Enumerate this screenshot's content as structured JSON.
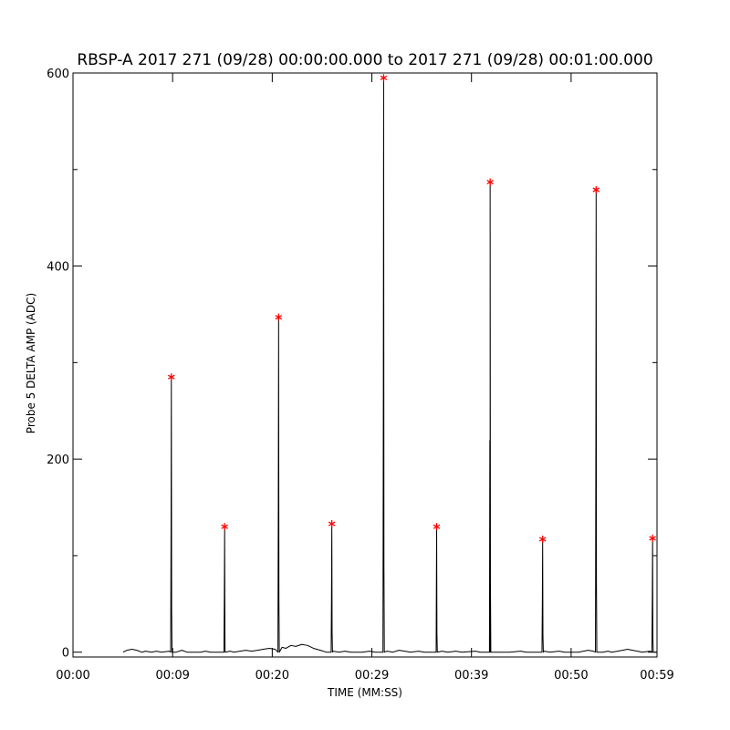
{
  "chart_data": {
    "type": "line",
    "title": "RBSP-A 2017 271 (09/28) 00:00:00.000 to 2017 271 (09/28) 00:01:00.000",
    "xlabel": "TIME (MM:SS)",
    "ylabel": "Probe 5 DELTA AMP (ADC)",
    "xlim": [
      0,
      59.5
    ],
    "ylim": [
      -5,
      600
    ],
    "x_ticks": [
      {
        "value": 0,
        "label": "00:00"
      },
      {
        "value": 10.15,
        "label": "00:09"
      },
      {
        "value": 20.3,
        "label": "00:20"
      },
      {
        "value": 30.45,
        "label": "00:29"
      },
      {
        "value": 40.6,
        "label": "00:39"
      },
      {
        "value": 50.75,
        "label": "00:50"
      },
      {
        "value": 59.5,
        "label": "00:59"
      }
    ],
    "y_ticks": [
      {
        "value": 0,
        "label": "0"
      },
      {
        "value": 200,
        "label": "200"
      },
      {
        "value": 400,
        "label": "400"
      },
      {
        "value": 600,
        "label": "600"
      }
    ],
    "y_minor_step": 100,
    "baseline": [
      [
        5.1,
        0
      ],
      [
        5.5,
        2
      ],
      [
        6.0,
        3
      ],
      [
        6.5,
        2
      ],
      [
        7.0,
        0
      ],
      [
        7.4,
        1
      ],
      [
        8.0,
        0
      ],
      [
        8.5,
        1
      ],
      [
        9.0,
        0
      ],
      [
        9.8,
        1
      ],
      [
        10.5,
        0
      ],
      [
        11.1,
        2
      ],
      [
        11.6,
        0
      ],
      [
        13.0,
        0
      ],
      [
        13.5,
        1
      ],
      [
        14.0,
        0
      ],
      [
        15.5,
        0
      ],
      [
        16.0,
        1
      ],
      [
        16.4,
        0
      ],
      [
        17.0,
        1
      ],
      [
        17.6,
        2
      ],
      [
        18.2,
        1
      ],
      [
        18.8,
        2
      ],
      [
        19.4,
        3
      ],
      [
        20.0,
        4
      ],
      [
        20.6,
        3
      ],
      [
        21.3,
        5
      ],
      [
        21.7,
        4
      ],
      [
        22.2,
        7
      ],
      [
        22.7,
        6
      ],
      [
        23.3,
        8
      ],
      [
        23.9,
        7
      ],
      [
        24.5,
        4
      ],
      [
        25.2,
        2
      ],
      [
        25.8,
        0
      ],
      [
        26.5,
        1
      ],
      [
        27.1,
        0
      ],
      [
        27.7,
        1
      ],
      [
        28.3,
        0
      ],
      [
        29.5,
        0
      ],
      [
        30.2,
        1
      ],
      [
        30.8,
        0
      ],
      [
        32.0,
        1
      ],
      [
        32.6,
        0
      ],
      [
        33.2,
        2
      ],
      [
        33.8,
        1
      ],
      [
        34.4,
        0
      ],
      [
        35.2,
        1
      ],
      [
        35.8,
        0
      ],
      [
        37.0,
        0
      ],
      [
        37.6,
        1
      ],
      [
        38.2,
        0
      ],
      [
        39.0,
        1
      ],
      [
        39.6,
        0
      ],
      [
        41.0,
        1
      ],
      [
        41.5,
        0
      ],
      [
        42.5,
        0
      ],
      [
        43.5,
        0
      ],
      [
        44.5,
        0
      ],
      [
        45.6,
        1
      ],
      [
        46.2,
        0
      ],
      [
        47.0,
        0
      ],
      [
        48.0,
        1
      ],
      [
        48.6,
        0
      ],
      [
        49.5,
        1
      ],
      [
        50.1,
        0
      ],
      [
        51.0,
        0
      ],
      [
        51.5,
        0
      ],
      [
        52.0,
        1
      ],
      [
        52.5,
        2
      ],
      [
        53.0,
        1
      ],
      [
        53.5,
        0
      ],
      [
        54.0,
        0
      ],
      [
        54.5,
        1
      ],
      [
        54.9,
        0
      ],
      [
        56.0,
        2
      ],
      [
        56.5,
        3
      ],
      [
        57.0,
        2
      ],
      [
        57.5,
        1
      ],
      [
        58.0,
        0
      ],
      [
        58.8,
        1
      ],
      [
        59.5,
        0
      ]
    ],
    "peaks": [
      {
        "x": 10.02,
        "y": 285
      },
      {
        "x": 15.45,
        "y": 130
      },
      {
        "x": 20.95,
        "y": 347
      },
      {
        "x": 26.37,
        "y": 133
      },
      {
        "x": 31.65,
        "y": 595
      },
      {
        "x": 37.05,
        "y": 130
      },
      {
        "x": 42.5,
        "y": 487
      },
      {
        "x": 47.85,
        "y": 117
      },
      {
        "x": 53.3,
        "y": 479
      },
      {
        "x": 59.05,
        "y": 118
      }
    ],
    "colors": {
      "line": "#000000",
      "peak_marker": "#ff0000",
      "axis": "#000000",
      "background": "#ffffff"
    }
  }
}
